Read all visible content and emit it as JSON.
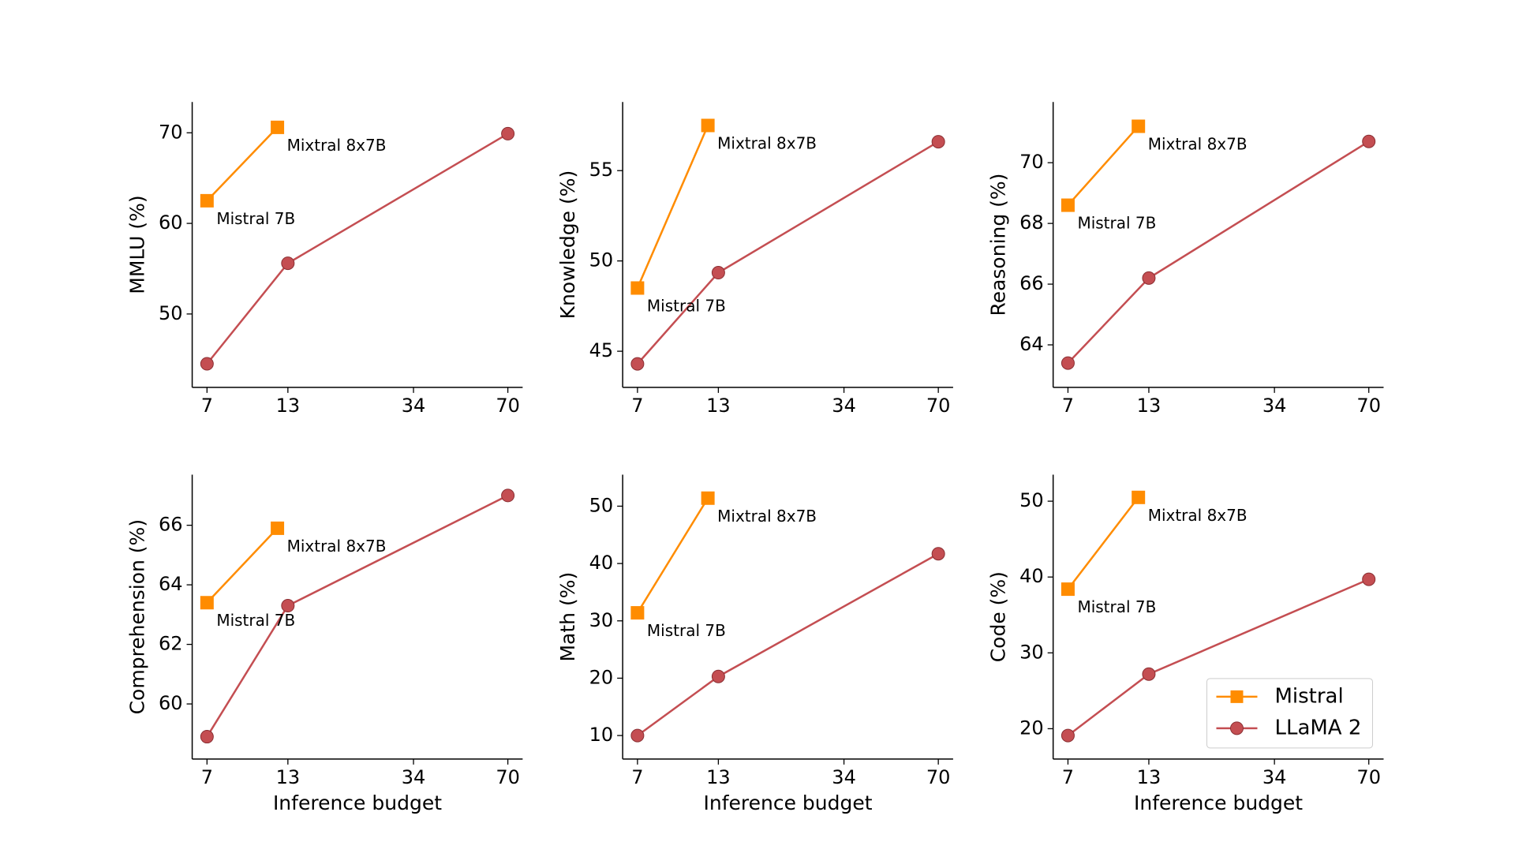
{
  "chart_data": [
    {
      "type": "line",
      "ylabel": "MMLU (%)",
      "xscale": "log",
      "xlim": [
        6.25,
        78.4
      ],
      "xticks": [
        7,
        13,
        34,
        70
      ],
      "ylim": [
        41.9,
        73.4
      ],
      "yticks": [
        50,
        60,
        70
      ],
      "annotations": [
        "Mistral 7B",
        "Mixtral 8x7B"
      ],
      "series": [
        {
          "name": "Mistral",
          "color": "#ff8c00",
          "marker": "square",
          "x": [
            7,
            12
          ],
          "values": [
            62.5,
            70.6
          ]
        },
        {
          "name": "LLaMA 2",
          "color": "#c44e52",
          "marker": "circle",
          "x": [
            7,
            13,
            70
          ],
          "values": [
            44.5,
            55.6,
            69.9
          ]
        }
      ]
    },
    {
      "type": "line",
      "ylabel": "Knowledge (%)",
      "xscale": "log",
      "xlim": [
        6.25,
        78.4
      ],
      "xticks": [
        7,
        13,
        34,
        70
      ],
      "ylim": [
        43.0,
        58.8
      ],
      "yticks": [
        45,
        50,
        55
      ],
      "annotations": [
        "Mistral 7B",
        "Mixtral 8x7B"
      ],
      "series": [
        {
          "name": "Mistral",
          "color": "#ff8c00",
          "marker": "square",
          "x": [
            7,
            12
          ],
          "values": [
            48.5,
            57.5
          ]
        },
        {
          "name": "LLaMA 2",
          "color": "#c44e52",
          "marker": "circle",
          "x": [
            7,
            13,
            70
          ],
          "values": [
            44.3,
            49.35,
            56.6
          ]
        }
      ]
    },
    {
      "type": "line",
      "ylabel": "Reasoning (%)",
      "xscale": "log",
      "xlim": [
        6.25,
        78.4
      ],
      "xticks": [
        7,
        13,
        34,
        70
      ],
      "ylim": [
        62.6,
        72.0
      ],
      "yticks": [
        64,
        66,
        68,
        70
      ],
      "annotations": [
        "Mistral 7B",
        "Mixtral 8x7B"
      ],
      "series": [
        {
          "name": "Mistral",
          "color": "#ff8c00",
          "marker": "square",
          "x": [
            7,
            12
          ],
          "values": [
            68.6,
            71.2
          ]
        },
        {
          "name": "LLaMA 2",
          "color": "#c44e52",
          "marker": "circle",
          "x": [
            7,
            13,
            70
          ],
          "values": [
            63.4,
            66.2,
            70.7
          ]
        }
      ]
    },
    {
      "type": "line",
      "ylabel": "Comprehension (%)",
      "xlabel": "Inference budget",
      "xscale": "log",
      "xlim": [
        6.25,
        78.4
      ],
      "xticks": [
        7,
        13,
        34,
        70
      ],
      "ylim": [
        58.15,
        67.7
      ],
      "yticks": [
        60,
        62,
        64,
        66
      ],
      "annotations": [
        "Mistral 7B",
        "Mixtral 8x7B"
      ],
      "series": [
        {
          "name": "Mistral",
          "color": "#ff8c00",
          "marker": "square",
          "x": [
            7,
            12
          ],
          "values": [
            63.4,
            65.9
          ]
        },
        {
          "name": "LLaMA 2",
          "color": "#c44e52",
          "marker": "circle",
          "x": [
            7,
            13,
            70
          ],
          "values": [
            58.9,
            63.3,
            67.0
          ]
        }
      ]
    },
    {
      "type": "line",
      "ylabel": "Math (%)",
      "xlabel": "Inference budget",
      "xscale": "log",
      "xlim": [
        6.25,
        78.4
      ],
      "xticks": [
        7,
        13,
        34,
        70
      ],
      "ylim": [
        5.9,
        55.5
      ],
      "yticks": [
        10,
        20,
        30,
        40,
        50
      ],
      "annotations": [
        "Mistral 7B",
        "Mixtral 8x7B"
      ],
      "series": [
        {
          "name": "Mistral",
          "color": "#ff8c00",
          "marker": "square",
          "x": [
            7,
            12
          ],
          "values": [
            31.4,
            51.4
          ]
        },
        {
          "name": "LLaMA 2",
          "color": "#c44e52",
          "marker": "circle",
          "x": [
            7,
            13,
            70
          ],
          "values": [
            10.0,
            20.3,
            41.7
          ]
        }
      ]
    },
    {
      "type": "line",
      "ylabel": "Code (%)",
      "xlabel": "Inference budget",
      "xscale": "log",
      "xlim": [
        6.25,
        78.4
      ],
      "xticks": [
        7,
        13,
        34,
        70
      ],
      "ylim": [
        16.0,
        53.5
      ],
      "yticks": [
        20,
        30,
        40,
        50
      ],
      "annotations": [
        "Mistral 7B",
        "Mixtral 8x7B"
      ],
      "legend": "lower right",
      "series": [
        {
          "name": "Mistral",
          "color": "#ff8c00",
          "marker": "square",
          "x": [
            7,
            12
          ],
          "values": [
            38.4,
            50.5
          ]
        },
        {
          "name": "LLaMA 2",
          "color": "#c44e52",
          "marker": "circle",
          "x": [
            7,
            13,
            70
          ],
          "values": [
            19.1,
            27.2,
            39.7
          ]
        }
      ]
    }
  ]
}
